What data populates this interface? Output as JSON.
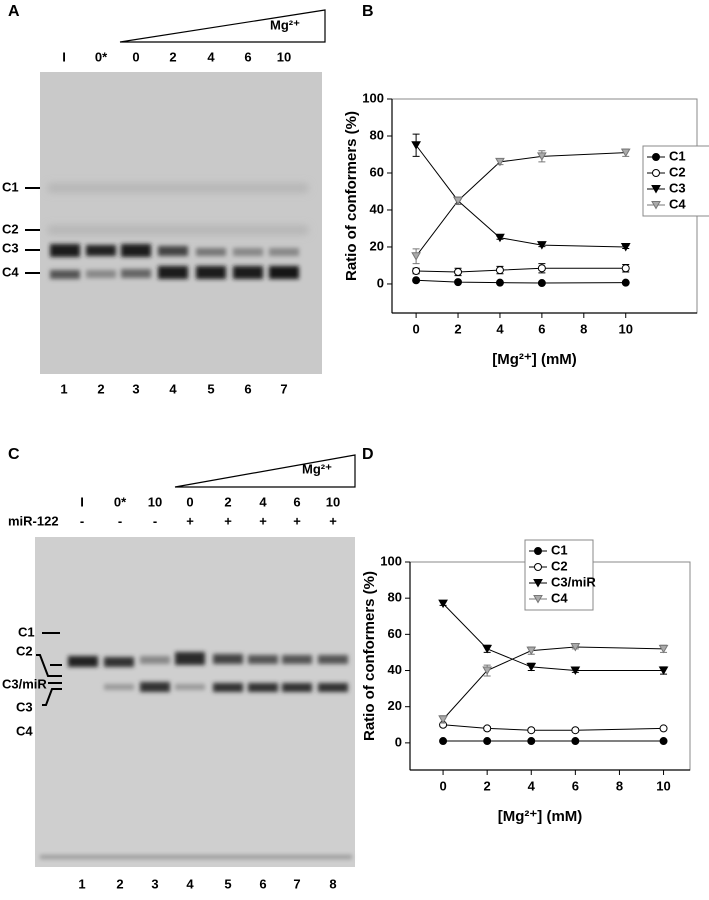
{
  "panel_labels": [
    "A",
    "B",
    "C",
    "D"
  ],
  "gel_a": {
    "lanes": [
      "I",
      "0*",
      "0",
      "2",
      "4",
      "6",
      "10"
    ],
    "gradient": "Mg²⁺",
    "bands": [
      "C1",
      "C2",
      "C3",
      "C4"
    ],
    "lane_numbers": [
      "1",
      "2",
      "3",
      "4",
      "5",
      "6",
      "7"
    ]
  },
  "gel_c": {
    "lanes": [
      "I",
      "0*",
      "10",
      "0",
      "2",
      "4",
      "6",
      "10"
    ],
    "gradient": "Mg²⁺",
    "row_label": "miR-122",
    "mir": [
      "-",
      "-",
      "-",
      "+",
      "+",
      "+",
      "+",
      "+"
    ],
    "bands": [
      "C1",
      "C2",
      "C3/miR",
      "C3",
      "C4"
    ],
    "lane_numbers": [
      "1",
      "2",
      "3",
      "4",
      "5",
      "6",
      "7",
      "8"
    ]
  },
  "chart_data": [
    {
      "type": "line",
      "xlabel": "[Mg²⁺] (mM)",
      "ylabel": "Ratio of conformers (%)",
      "x": [
        0,
        2,
        4,
        6,
        10
      ],
      "xlim": [
        -1.15,
        13.4
      ],
      "ylim": [
        -15.7,
        100
      ],
      "xticks": [
        0,
        2,
        4,
        6,
        8,
        10
      ],
      "yticks": [
        0,
        20,
        40,
        60,
        80,
        100
      ],
      "legend": "center right",
      "grid": false,
      "series": [
        {
          "name": "C1",
          "color": "#000000",
          "marker": "circle",
          "values": [
            2,
            1,
            0.7,
            0.5,
            0.7
          ],
          "errors": [
            0.5,
            0.5,
            0.5,
            0.5,
            0.5
          ]
        },
        {
          "name": "C2",
          "color": "#ffffff",
          "marker": "circle",
          "values": [
            7,
            6.5,
            7.5,
            8.5,
            8.5
          ],
          "errors": [
            1.5,
            2,
            2,
            2.5,
            2
          ]
        },
        {
          "name": "C3",
          "color": "#000000",
          "marker": "triangle-down",
          "values": [
            75,
            45,
            25,
            21,
            20
          ],
          "errors": [
            6,
            2,
            0.8,
            0.8,
            0.8
          ]
        },
        {
          "name": "C4",
          "color": "#aaaaaa",
          "marker": "triangle-down",
          "values": [
            15,
            45,
            66,
            69,
            71
          ],
          "errors": [
            4,
            2,
            1.5,
            3,
            2
          ]
        }
      ]
    },
    {
      "type": "line",
      "xlabel": "[Mg²⁺] (mM)",
      "ylabel": "Ratio of conformers (%)",
      "x": [
        0,
        2,
        4,
        6,
        10
      ],
      "xlim": [
        -1.5,
        11.2
      ],
      "ylim": [
        -15,
        100
      ],
      "xticks": [
        0,
        2,
        4,
        6,
        8,
        10
      ],
      "yticks": [
        0,
        20,
        40,
        60,
        80,
        100
      ],
      "legend": "upper center",
      "grid": false,
      "series": [
        {
          "name": "C1",
          "color": "#000000",
          "marker": "circle",
          "values": [
            1,
            1,
            1,
            1,
            1
          ],
          "errors": [
            0.3,
            0.3,
            0.3,
            0.3,
            0.3
          ]
        },
        {
          "name": "C2",
          "color": "#ffffff",
          "marker": "circle",
          "values": [
            10,
            8,
            7,
            7,
            8
          ],
          "errors": [
            1,
            1,
            0.8,
            0.8,
            0.8
          ]
        },
        {
          "name": "C3/miR",
          "color": "#000000",
          "marker": "triangle-down",
          "values": [
            77,
            52,
            42,
            40,
            40
          ],
          "errors": [
            1,
            2,
            2,
            1,
            2
          ]
        },
        {
          "name": "C4",
          "color": "#aaaaaa",
          "marker": "triangle-down",
          "values": [
            13,
            40,
            51,
            53,
            52
          ],
          "errors": [
            2,
            3,
            2,
            1,
            2
          ]
        }
      ]
    }
  ]
}
